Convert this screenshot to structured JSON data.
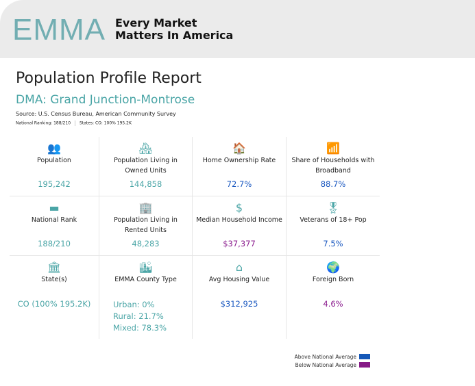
{
  "header": {
    "logo": "EMMA",
    "tagline_1": "Every Market",
    "tagline_2": "Matters In America"
  },
  "report": {
    "title": "Population Profile Report",
    "dma": "DMA: Grand Junction-Montrose",
    "source": "Source: U.S. Census Bureau, American Community Survey",
    "national_ranking": "National Ranking: 188/210",
    "states": "States: CO: 100% 195.2K"
  },
  "colors": {
    "teal": "#4aa5a6",
    "above": "#1558b8",
    "below": "#871a87"
  },
  "metrics": [
    {
      "icon": "people-icon",
      "glyph": "👥",
      "label": "Population",
      "value": "195,242",
      "tone": "neutral"
    },
    {
      "icon": "house-people-icon",
      "glyph": "🏘",
      "label": "Population Living in Owned Units",
      "value": "144,858",
      "tone": "neutral"
    },
    {
      "icon": "house-icon",
      "glyph": "🏠",
      "label": "Home Ownership Rate",
      "value": "72.7%",
      "tone": "above"
    },
    {
      "icon": "wifi-icon",
      "glyph": "📶",
      "label": "Share of Households with Broadband",
      "value": "88.7%",
      "tone": "above"
    },
    {
      "icon": "usa-map-icon",
      "glyph": "▬",
      "label": "National Rank",
      "value": "188/210",
      "tone": "neutral"
    },
    {
      "icon": "building-dollar-icon",
      "glyph": "🏢",
      "label": "Population Living in Rented Units",
      "value": "48,283",
      "tone": "neutral"
    },
    {
      "icon": "dollar-icon",
      "glyph": "$",
      "label": "Median Household Income",
      "value": "$37,377",
      "tone": "below"
    },
    {
      "icon": "veteran-medal-icon",
      "glyph": "🎖",
      "label": "Veterans of 18+ Pop",
      "value": "7.5%",
      "tone": "above"
    },
    {
      "icon": "capitol-icon",
      "glyph": "🏛",
      "label": "State(s)",
      "value": "CO (100% 195.2K)",
      "tone": "neutral"
    },
    {
      "icon": "city-farm-icon",
      "glyph": "🏙",
      "label": "EMMA County Type",
      "values": [
        "Urban: 0%",
        "Rural: 21.7%",
        "Mixed: 78.3%"
      ],
      "tone": "neutral"
    },
    {
      "icon": "house-dollar-icon",
      "glyph": "⌂",
      "label": "Avg Housing Value",
      "value": "$312,925",
      "tone": "above"
    },
    {
      "icon": "globe-icon",
      "glyph": "🌍",
      "label": "Foreign Born",
      "value": "4.6%",
      "tone": "below"
    }
  ],
  "legend": {
    "above": "Above National Average",
    "below": "Below National Average"
  }
}
